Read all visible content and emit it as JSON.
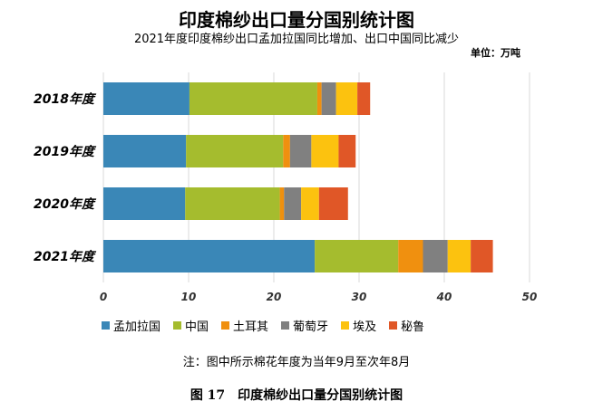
{
  "chart_data": {
    "type": "bar",
    "orientation": "horizontal",
    "stacked": true,
    "title": "印度棉纱出口量分国别统计图",
    "subtitle": "2021年度印度棉纱出口孟加拉国同比增加、出口中国同比减少",
    "unit": "单位：万吨",
    "categories": [
      "2018年度",
      "2019年度",
      "2020年度",
      "2021年度"
    ],
    "series": [
      {
        "name": "孟加拉国",
        "color": "#3a87b7",
        "values": [
          10.1,
          9.7,
          9.6,
          24.8
        ]
      },
      {
        "name": "中国",
        "color": "#a5bc2e",
        "values": [
          15.0,
          11.4,
          11.1,
          9.8
        ]
      },
      {
        "name": "土耳其",
        "color": "#f0900f",
        "values": [
          0.5,
          0.8,
          0.5,
          2.9
        ]
      },
      {
        "name": "葡萄牙",
        "color": "#808080",
        "values": [
          1.7,
          2.5,
          2.0,
          2.9
        ]
      },
      {
        "name": "埃及",
        "color": "#fcc20f",
        "values": [
          2.5,
          3.2,
          2.1,
          2.7
        ]
      },
      {
        "name": "秘鲁",
        "color": "#e05727",
        "values": [
          1.5,
          2.0,
          3.4,
          2.6
        ]
      }
    ],
    "xlim": [
      0,
      50
    ],
    "xticks": [
      0,
      10,
      20,
      30,
      40,
      50
    ],
    "grid": true,
    "legend": "bottom"
  },
  "note": "注：图中所示棉花年度为当年9月至次年8月",
  "caption": "图 17　印度棉纱出口量分国别统计图"
}
